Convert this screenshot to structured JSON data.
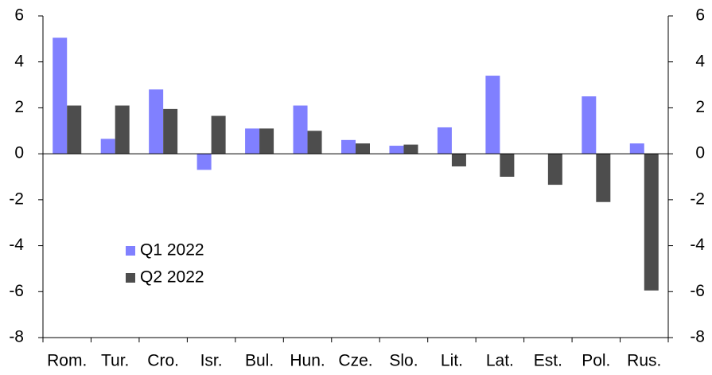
{
  "chart_data": {
    "type": "bar",
    "categories": [
      "Rom.",
      "Tur.",
      "Cro.",
      "Isr.",
      "Bul.",
      "Hun.",
      "Cze.",
      "Slo.",
      "Lit.",
      "Lat.",
      "Est.",
      "Pol.",
      "Rus."
    ],
    "series": [
      {
        "name": "Q1 2022",
        "color": "#8080ff",
        "values": [
          5.05,
          0.65,
          2.8,
          -0.7,
          1.1,
          2.1,
          0.6,
          0.35,
          1.15,
          3.4,
          null,
          2.5,
          0.45
        ]
      },
      {
        "name": "Q2 2022",
        "color": "#4d4d4d",
        "values": [
          2.1,
          2.1,
          1.95,
          1.65,
          1.1,
          1.0,
          0.45,
          0.4,
          -0.55,
          -1.0,
          -1.35,
          -2.1,
          -5.95
        ],
        "axis": "y"
      }
    ],
    "ylim": [
      -8,
      6
    ],
    "yticks": [
      -8,
      -6,
      -4,
      -2,
      0,
      2,
      4,
      6
    ],
    "y2lim": [
      -8,
      6
    ],
    "y2ticks": [
      -8,
      -6,
      -4,
      -2,
      0,
      2,
      4,
      6
    ],
    "grid": false,
    "legend": "lower-left"
  }
}
